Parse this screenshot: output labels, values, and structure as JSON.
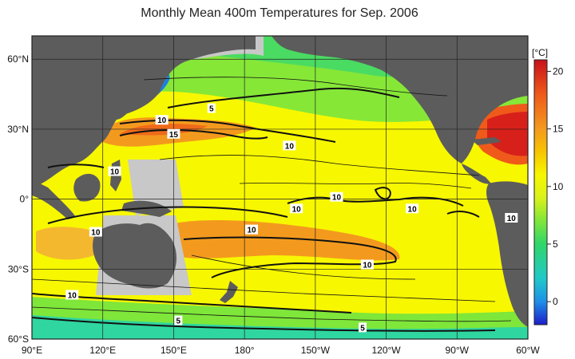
{
  "title": "Monthly Mean 400m Temperatures for Sep. 2006",
  "colorbar": {
    "unit": "[°C]",
    "min": -2,
    "max": 21,
    "ticks": [
      "20",
      "15",
      "10",
      "5",
      "0"
    ],
    "tick_values": [
      20,
      15,
      10,
      5,
      0
    ],
    "stops": [
      {
        "v": -2,
        "c": "#1d1dc9"
      },
      {
        "v": 0,
        "c": "#1f8fe8"
      },
      {
        "v": 2,
        "c": "#1fc9c9"
      },
      {
        "v": 5,
        "c": "#2fd66a"
      },
      {
        "v": 7,
        "c": "#7fe63a"
      },
      {
        "v": 9,
        "c": "#d9f21a"
      },
      {
        "v": 11,
        "c": "#f7f700"
      },
      {
        "v": 13,
        "c": "#f7c400"
      },
      {
        "v": 15,
        "c": "#f39a1e"
      },
      {
        "v": 18,
        "c": "#ef5a1a"
      },
      {
        "v": 21,
        "c": "#c8101a"
      }
    ]
  },
  "axes": {
    "lon_labels": [
      "90°E",
      "120°E",
      "150°E",
      "180°",
      "150°W",
      "120°W",
      "90°W",
      "60°W"
    ],
    "lon_values": [
      90,
      120,
      150,
      180,
      210,
      240,
      270,
      300
    ],
    "lat_labels": [
      "60°N",
      "30°N",
      "0°",
      "30°S",
      "60°S"
    ],
    "lat_values": [
      60,
      30,
      0,
      -30,
      -60
    ],
    "lon_range": [
      90,
      300
    ],
    "lat_range": [
      -60,
      70
    ]
  },
  "contour_labels": [
    {
      "text": "5",
      "lon": 166,
      "lat": 39
    },
    {
      "text": "10",
      "lon": 145,
      "lat": 34
    },
    {
      "text": "15",
      "lon": 150,
      "lat": 28
    },
    {
      "text": "10",
      "lon": 199,
      "lat": 23
    },
    {
      "text": "10",
      "lon": 125,
      "lat": 12
    },
    {
      "text": "10",
      "lon": 219,
      "lat": 1
    },
    {
      "text": "10",
      "lon": 202,
      "lat": -4
    },
    {
      "text": "10",
      "lon": 251,
      "lat": -4
    },
    {
      "text": "10",
      "lon": 293,
      "lat": -8
    },
    {
      "text": "10",
      "lon": 117,
      "lat": -14
    },
    {
      "text": "10",
      "lon": 183,
      "lat": -13
    },
    {
      "text": "10",
      "lon": 232,
      "lat": -28
    },
    {
      "text": "10",
      "lon": 107,
      "lat": -41
    },
    {
      "text": "5",
      "lon": 152,
      "lat": -52
    },
    {
      "text": "5",
      "lon": 230,
      "lat": -55
    }
  ],
  "colors": {
    "land": "#5c5c5c",
    "ice_or_shelf": "#c8c8c8",
    "grid": "#222222",
    "contour": "#111111"
  }
}
